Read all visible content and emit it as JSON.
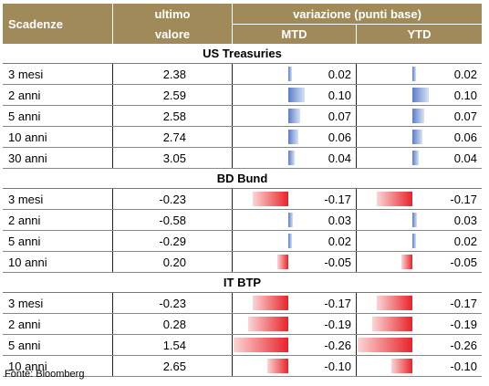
{
  "header": {
    "col1": "Scadenze",
    "col2_line1": "ultimo",
    "col2_line2": "valore",
    "variation": "variazione (punti base)",
    "mtd": "MTD",
    "ytd": "YTD"
  },
  "sections": [
    {
      "title": "US Treasuries",
      "rows": [
        {
          "label": "3 mesi",
          "value": "2.38",
          "mtd": "0.02",
          "ytd": "0.02"
        },
        {
          "label": "2 anni",
          "value": "2.59",
          "mtd": "0.10",
          "ytd": "0.10"
        },
        {
          "label": "5 anni",
          "value": "2.58",
          "mtd": "0.07",
          "ytd": "0.07"
        },
        {
          "label": "10 anni",
          "value": "2.74",
          "mtd": "0.06",
          "ytd": "0.06"
        },
        {
          "label": "30 anni",
          "value": "3.05",
          "mtd": "0.04",
          "ytd": "0.04"
        }
      ]
    },
    {
      "title": "BD Bund",
      "rows": [
        {
          "label": "3 mesi",
          "value": "-0.23",
          "mtd": "-0.17",
          "ytd": "-0.17"
        },
        {
          "label": "2 anni",
          "value": "-0.58",
          "mtd": "0.03",
          "ytd": "0.03"
        },
        {
          "label": "5 anni",
          "value": "-0.29",
          "mtd": "0.02",
          "ytd": "0.02"
        },
        {
          "label": "10 anni",
          "value": "0.20",
          "mtd": "-0.05",
          "ytd": "-0.05"
        }
      ]
    },
    {
      "title": "IT BTP",
      "rows": [
        {
          "label": "3 mesi",
          "value": "-0.23",
          "mtd": "-0.17",
          "ytd": "-0.17"
        },
        {
          "label": "2 anni",
          "value": "0.28",
          "mtd": "-0.19",
          "ytd": "-0.19"
        },
        {
          "label": "5 anni",
          "value": "1.54",
          "mtd": "-0.26",
          "ytd": "-0.26"
        },
        {
          "label": "10 anni",
          "value": "2.65",
          "mtd": "-0.10",
          "ytd": "-0.10"
        }
      ]
    }
  ],
  "source": "Fonte: Bloomberg",
  "colors": {
    "header_bg": "#a08a5a",
    "positive_bar": "#5b7ec8",
    "negative_bar": "#e8232a"
  }
}
